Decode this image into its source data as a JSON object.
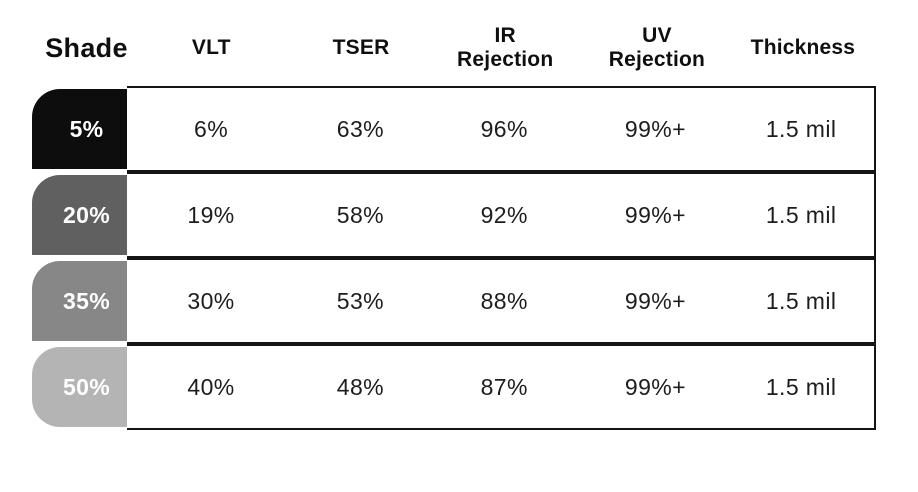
{
  "accent_colors": {
    "border": "#141414",
    "tab_text": "#ffffff",
    "header_text": "#0f0f0f",
    "cell_text": "#1d1d1d",
    "background": "#ffffff"
  },
  "table": {
    "shade_header": "Shade",
    "columns": [
      "VLT",
      "TSER",
      "IR\nRejection",
      "UV\nRejection",
      "Thickness"
    ],
    "rows": [
      {
        "shade": {
          "label": "5%",
          "color": "#0d0d0d"
        },
        "values": [
          "6%",
          "63%",
          "96%",
          "99%+",
          "1.5 mil"
        ]
      },
      {
        "shade": {
          "label": "20%",
          "color": "#606060"
        },
        "values": [
          "19%",
          "58%",
          "92%",
          "99%+",
          "1.5 mil"
        ]
      },
      {
        "shade": {
          "label": "35%",
          "color": "#878787"
        },
        "values": [
          "30%",
          "53%",
          "88%",
          "99%+",
          "1.5 mil"
        ]
      },
      {
        "shade": {
          "label": "50%",
          "color": "#b4b4b4"
        },
        "values": [
          "40%",
          "48%",
          "87%",
          "99%+",
          "1.5 mil"
        ]
      }
    ]
  },
  "chart_data": {
    "type": "table",
    "title": "",
    "columns": [
      "Shade",
      "VLT",
      "TSER",
      "IR Rejection",
      "UV Rejection",
      "Thickness"
    ],
    "rows": [
      [
        "5%",
        "6%",
        "63%",
        "96%",
        "99%+",
        "1.5 mil"
      ],
      [
        "20%",
        "19%",
        "58%",
        "92%",
        "99%+",
        "1.5 mil"
      ],
      [
        "35%",
        "30%",
        "53%",
        "88%",
        "99%+",
        "1.5 mil"
      ],
      [
        "50%",
        "40%",
        "48%",
        "87%",
        "99%+",
        "1.5 mil"
      ]
    ],
    "row_swatch_colors": [
      "#0d0d0d",
      "#606060",
      "#878787",
      "#b4b4b4"
    ],
    "layout": {
      "grid": false,
      "legend": "none",
      "row_tab_corner": "rounded-top-left"
    }
  }
}
